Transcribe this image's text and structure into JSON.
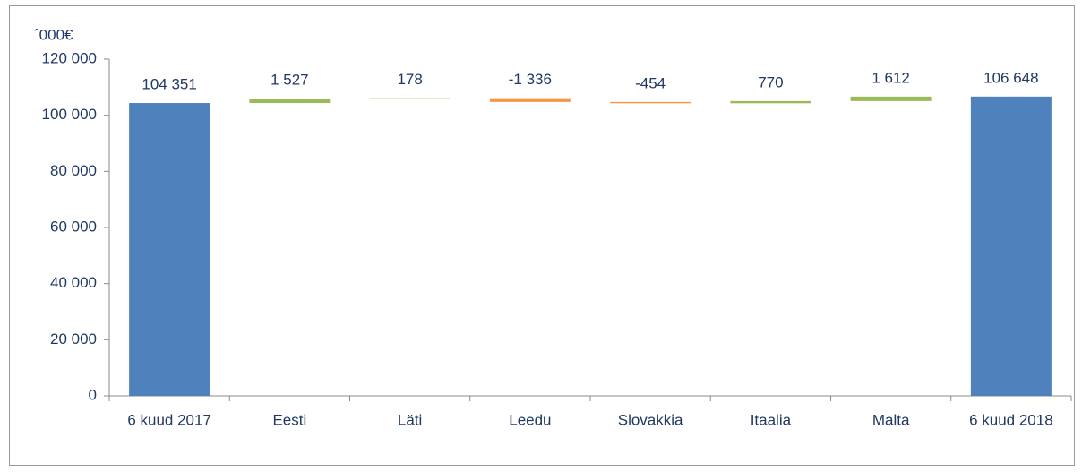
{
  "chart_data": {
    "type": "waterfall",
    "y_axis_label": "´000€",
    "categories": [
      "6 kuud 2017",
      "Eesti",
      "Läti",
      "Leedu",
      "Slovakkia",
      "Itaalia",
      "Malta",
      "6 kuud 2018"
    ],
    "values": [
      104351,
      1527,
      178,
      -1336,
      -454,
      770,
      1612,
      106648
    ],
    "value_labels": [
      "104 351",
      "1 527",
      "178",
      "-1 336",
      "-454",
      "770",
      "1 612",
      "106 648"
    ],
    "total_color": "#4f81bd",
    "increase_color": "#9bbb59",
    "decrease_color": "#f79646",
    "ylim": [
      0,
      120000
    ],
    "yticks": [
      0,
      {
        "value": 20000,
        "label": "20 000"
      },
      {
        "value": 40000,
        "label": "40 000"
      },
      {
        "value": 60000,
        "label": "60 000"
      },
      {
        "value": 80000,
        "label": "80 000"
      },
      {
        "value": 100000,
        "label": "100 000"
      },
      {
        "value": 120000,
        "label": "120 000"
      }
    ]
  }
}
